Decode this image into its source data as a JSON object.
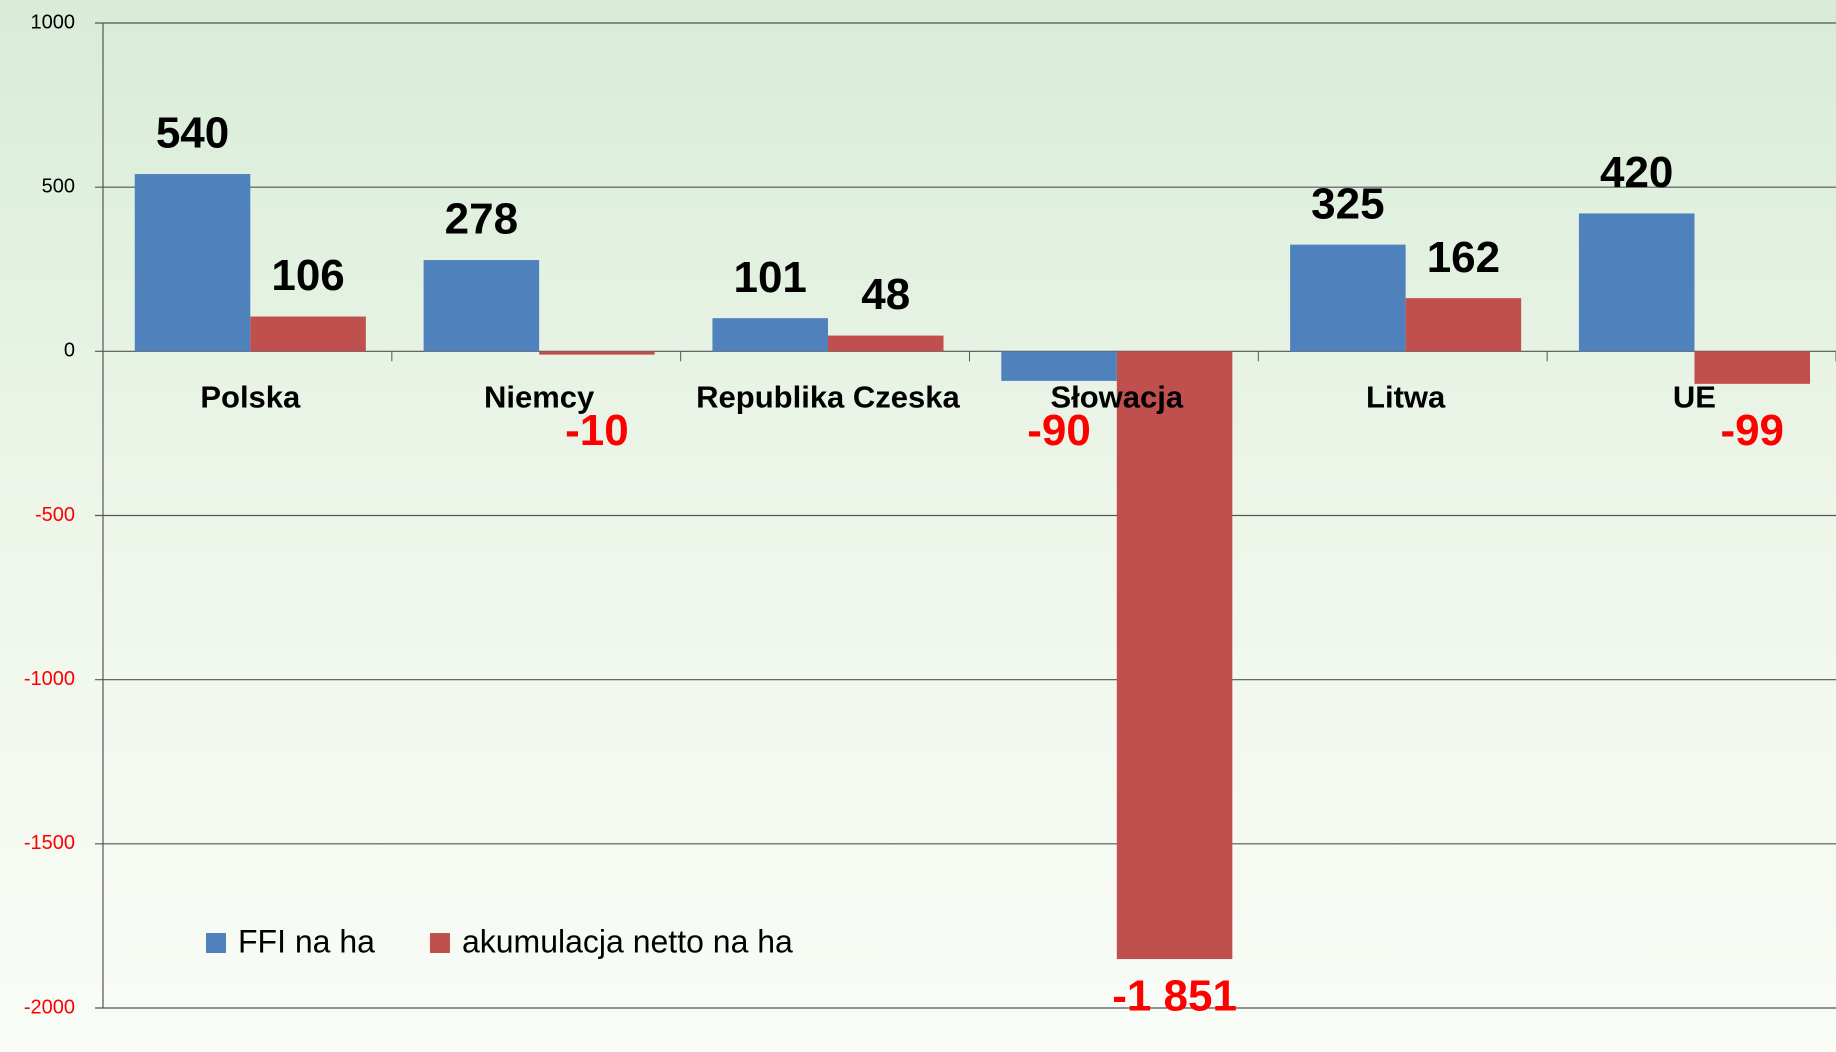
{
  "chart_data": {
    "type": "bar",
    "categories": [
      "Polska",
      "Niemcy",
      "Republika Czeska",
      "Słowacja",
      "Litwa",
      "UE"
    ],
    "series": [
      {
        "name": "FFI na ha",
        "color": "#4f81bd",
        "values": [
          540,
          278,
          101,
          -90,
          325,
          420
        ]
      },
      {
        "name": "akumulacja netto na ha",
        "color": "#c0504d",
        "values": [
          106,
          -10,
          48,
          -1851,
          162,
          -99
        ],
        "value_labels": [
          "106",
          "-10",
          "48",
          "-1 851",
          "162",
          "-99"
        ]
      }
    ],
    "ylim": [
      -2000,
      1000
    ],
    "yticks": [
      -2000,
      -1500,
      -1000,
      -500,
      0,
      500,
      1000
    ],
    "grid": true,
    "negative_color": "#ff0000",
    "legend": "lower left"
  }
}
